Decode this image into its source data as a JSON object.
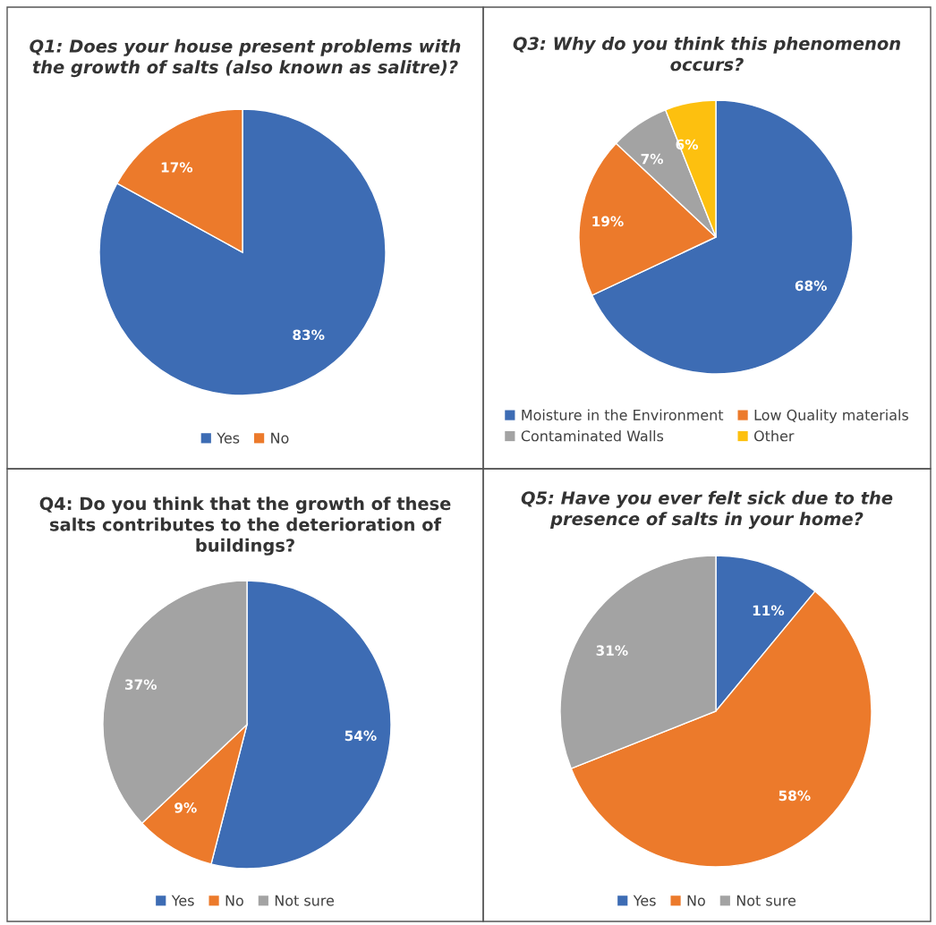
{
  "chart_data": [
    {
      "type": "pie",
      "title": "Q1: Does your house present problems with\nthe growth of salts (also known as salitre)?",
      "categories": [
        "Yes",
        "No"
      ],
      "values": [
        83,
        17
      ],
      "colors": [
        "#3d6cb4",
        "#ec7a2b"
      ],
      "value_labels": [
        "83%",
        "17%"
      ],
      "legend": "bottom"
    },
    {
      "type": "pie",
      "title": "Q3: Why do you think this phenomenon\noccurs?",
      "categories": [
        "Moisture in the Environment",
        "Low Quality materials",
        "Contaminated Walls",
        "Other"
      ],
      "values": [
        68,
        19,
        7,
        6
      ],
      "colors": [
        "#3d6cb4",
        "#ec7a2b",
        "#a3a3a3",
        "#fdc00f"
      ],
      "value_labels": [
        "68%",
        "19%",
        "7%",
        "6%"
      ],
      "legend": "bottom"
    },
    {
      "type": "pie",
      "title": "Q4: Do you think that the growth of these\nsalts contributes to the deterioration of\nbuildings?",
      "categories": [
        "Yes",
        "No",
        "Not sure"
      ],
      "values": [
        54,
        9,
        37
      ],
      "colors": [
        "#3d6cb4",
        "#ec7a2b",
        "#a3a3a3"
      ],
      "value_labels": [
        "54%",
        "9%",
        "37%"
      ],
      "legend": "bottom"
    },
    {
      "type": "pie",
      "title": "Q5: Have you ever felt sick due to the\npresence of salts in your home?",
      "categories": [
        "Yes",
        "No",
        "Not sure"
      ],
      "values": [
        11,
        58,
        31
      ],
      "colors": [
        "#3d6cb4",
        "#ec7a2b",
        "#a3a3a3"
      ],
      "value_labels": [
        "11%",
        "58%",
        "31%"
      ],
      "legend": "bottom"
    }
  ]
}
